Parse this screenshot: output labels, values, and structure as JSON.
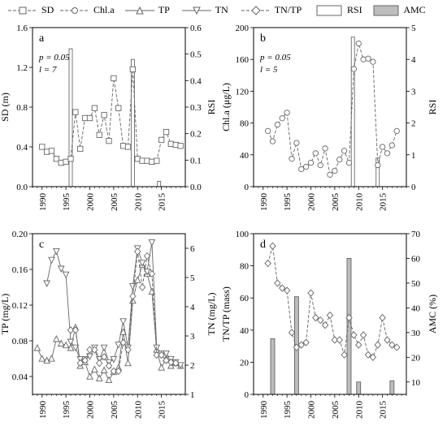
{
  "legend": [
    {
      "label": "SD",
      "marker": "square",
      "line": "dashed"
    },
    {
      "label": "Chl.a",
      "marker": "circle",
      "line": "dashed"
    },
    {
      "label": "TP",
      "marker": "triangle-up",
      "line": "solid"
    },
    {
      "label": "TN",
      "marker": "triangle-down",
      "line": "solid"
    },
    {
      "label": "TN/TP",
      "marker": "diamond",
      "line": "dashed"
    },
    {
      "label": "RSI",
      "marker": "open-bar"
    },
    {
      "label": "AMC",
      "marker": "gray-bar"
    }
  ],
  "colors": {
    "line": "#666666",
    "marker_stroke": "#666666",
    "amc_fill": "#bdbdbd",
    "rsi_fill": "#ffffff"
  },
  "chart_data": [
    {
      "panel": "a",
      "type": "line",
      "ylabel": "SD (m)",
      "y2label": "RSI",
      "xlim": [
        1988,
        2020
      ],
      "xticks": [
        1990,
        1995,
        2000,
        2005,
        2010,
        2015
      ],
      "ylim": [
        0,
        1.6
      ],
      "yticks": [
        0.0,
        0.4,
        0.8,
        1.2,
        1.6
      ],
      "y2lim": [
        0,
        0.6
      ],
      "y2ticks": [
        0.0,
        0.1,
        0.2,
        0.3,
        0.4,
        0.5,
        0.6
      ],
      "annotations": [
        "p = 0.05",
        "l = 7"
      ],
      "series": [
        {
          "marker": "square",
          "line": "dashed",
          "axis": "left",
          "x": [
            1990,
            1991,
            1992,
            1993,
            1994,
            1995,
            1996,
            1997,
            1998,
            1999,
            2000,
            2001,
            2002,
            2003,
            2004,
            2005,
            2006,
            2007,
            2008,
            2009,
            2010,
            2011,
            2012,
            2013,
            2014,
            2015,
            2016,
            2017,
            2018,
            2019
          ],
          "y": [
            0.4,
            0.35,
            0.36,
            0.28,
            0.24,
            0.25,
            0.28,
            0.75,
            0.38,
            0.69,
            0.69,
            0.79,
            0.52,
            0.72,
            0.46,
            1.09,
            0.79,
            0.41,
            0.4,
            1.18,
            0.28,
            0.26,
            0.26,
            0.25,
            0.26,
            0.47,
            0.55,
            0.43,
            0.42,
            0.41
          ]
        }
      ],
      "bars": [
        {
          "kind": "RSI",
          "axis": "right",
          "x": 1996.0,
          "value": 0.52
        },
        {
          "kind": "RSI",
          "axis": "right",
          "x": 2009.0,
          "value": 0.48
        },
        {
          "kind": "RSI",
          "axis": "right",
          "x": 2014.5,
          "value": 0.02
        }
      ]
    },
    {
      "panel": "b",
      "type": "line",
      "ylabel": "Chl.a (μg/L)",
      "y2label": "RSI",
      "xlim": [
        1988,
        2020
      ],
      "xticks": [
        1990,
        1995,
        2000,
        2005,
        2010,
        2015
      ],
      "ylim": [
        0,
        200
      ],
      "yticks": [
        0,
        40,
        80,
        120,
        160,
        200
      ],
      "y2lim": [
        0,
        5
      ],
      "y2ticks": [
        0,
        1,
        2,
        3,
        4,
        5
      ],
      "annotations": [
        "p = 0.05",
        "l = 5"
      ],
      "series": [
        {
          "marker": "circle",
          "line": "dashed",
          "axis": "left",
          "x": [
            1991,
            1992,
            1993,
            1994,
            1995,
            1996,
            1997,
            1998,
            1999,
            2000,
            2001,
            2002,
            2003,
            2004,
            2005,
            2006,
            2007,
            2008,
            2009,
            2010,
            2011,
            2012,
            2013,
            2014,
            2015,
            2016,
            2017,
            2018
          ],
          "y": [
            70,
            57,
            78,
            86,
            93,
            35,
            55,
            22,
            25,
            30,
            42,
            27,
            48,
            15,
            20,
            34,
            45,
            30,
            148,
            180,
            160,
            161,
            157,
            27,
            50,
            42,
            52,
            70
          ]
        }
      ],
      "bars": [
        {
          "kind": "RSI",
          "axis": "right",
          "x": 2008.8,
          "value": 4.7
        },
        {
          "kind": "RSI",
          "axis": "right",
          "x": 2014.0,
          "value": 0.9
        }
      ]
    },
    {
      "panel": "c",
      "type": "line",
      "ylabel": "TP (mg/L)",
      "y2label": "TN (mg/L)",
      "xlim": [
        1988,
        2020
      ],
      "xticks": [
        1990,
        1995,
        2000,
        2005,
        2010,
        2015
      ],
      "ylim": [
        0.02,
        0.2
      ],
      "yticks": [
        0.04,
        0.08,
        0.12,
        0.16,
        0.2
      ],
      "yticklabels": [
        "0.04",
        "0.08",
        "0.12",
        "0.16",
        "0.20"
      ],
      "y2lim": [
        1,
        6.5
      ],
      "y2ticks": [
        1,
        2,
        3,
        4,
        5,
        6
      ],
      "series": [
        {
          "name_key": "TP",
          "marker": "triangle-up",
          "line": "solid",
          "axis": "left",
          "x": [
            1989,
            1990,
            1991,
            1992,
            1993,
            1994,
            1995,
            1996,
            1997,
            1998,
            1999,
            2000,
            2001,
            2002,
            2003,
            2004,
            2005,
            2006,
            2007,
            2008,
            2009,
            2010,
            2011,
            2012,
            2013,
            2014,
            2015,
            2016,
            2017,
            2018,
            2019
          ],
          "y": [
            0.072,
            0.06,
            0.058,
            0.06,
            0.082,
            0.077,
            0.075,
            0.072,
            0.095,
            0.052,
            0.056,
            0.04,
            0.048,
            0.038,
            0.047,
            0.036,
            0.045,
            0.05,
            0.09,
            0.055,
            0.125,
            0.148,
            0.165,
            0.155,
            0.135,
            0.07,
            0.05,
            0.06,
            0.052,
            0.055,
            0.052
          ]
        },
        {
          "name_key": "TN",
          "marker": "triangle-down",
          "line": "solid",
          "axis": "right",
          "x": [
            1991,
            1992,
            1993,
            1994,
            1995,
            1996,
            1997,
            1998,
            1999,
            2000,
            2001,
            2002,
            2003,
            2004,
            2005,
            2006,
            2007,
            2008,
            2009,
            2010,
            2011,
            2012,
            2013,
            2014,
            2015,
            2016,
            2017,
            2018,
            2019
          ],
          "y": [
            4.8,
            5.6,
            5.9,
            5.3,
            5.1,
            2.8,
            2.6,
            2.2,
            2.2,
            2.3,
            2.6,
            2.2,
            2.6,
            2.1,
            2.2,
            2.7,
            3.5,
            2.6,
            4.7,
            6.0,
            5.5,
            5.2,
            6.2,
            2.6,
            2.4,
            2.4,
            2.2,
            2.1,
            2.0
          ]
        },
        {
          "name_key": "TN/TP",
          "marker": "diamond",
          "line": "dashed",
          "axis": "left",
          "x": [
            1996,
            1997,
            1998,
            1999,
            2000,
            2001,
            2002,
            2003,
            2004,
            2005,
            2006,
            2007,
            2008,
            2009,
            2010,
            2011,
            2012,
            2013,
            2014,
            2015,
            2016,
            2017,
            2018
          ],
          "y": [
            0.092,
            0.092,
            0.055,
            0.058,
            0.07,
            0.07,
            0.055,
            0.062,
            0.052,
            0.046,
            0.046,
            0.078,
            0.07,
            0.13,
            0.18,
            0.14,
            0.175,
            0.155,
            0.064,
            0.064,
            0.058,
            0.056,
            0.055
          ]
        }
      ]
    },
    {
      "panel": "d",
      "type": "line",
      "ylabel": "TN/TP (mass)",
      "y2label": "AMC (%)",
      "xlim": [
        1988,
        2020
      ],
      "xticks": [
        1990,
        1995,
        2000,
        2005,
        2010,
        2015
      ],
      "ylim": [
        0,
        100
      ],
      "yticks": [
        0,
        20,
        40,
        60,
        80,
        100
      ],
      "y2lim": [
        5,
        70
      ],
      "y2ticks": [
        10,
        20,
        30,
        40,
        50,
        60,
        70
      ],
      "series": [
        {
          "name_key": "TN/TP",
          "marker": "diamond",
          "line": "dashed",
          "axis": "right",
          "x": [
            1991,
            1992,
            1993,
            1994,
            1995,
            1996,
            1997,
            1998,
            1999,
            2000,
            2001,
            2002,
            2003,
            2004,
            2005,
            2006,
            2007,
            2008,
            2009,
            2010,
            2011,
            2012,
            2013,
            2014,
            2015,
            2016,
            2017,
            2018
          ],
          "y": [
            58,
            65,
            50,
            48,
            47,
            30,
            24,
            25,
            26,
            46,
            36,
            35,
            33,
            37,
            27,
            27,
            21,
            36,
            29,
            25,
            29,
            21,
            20,
            25,
            36,
            27,
            25,
            24
          ]
        }
      ],
      "bars": [
        {
          "kind": "AMC",
          "axis": "right",
          "x": 1992,
          "value": 27.5
        },
        {
          "kind": "AMC",
          "axis": "right",
          "x": 1997,
          "value": 44.5
        },
        {
          "kind": "AMC",
          "axis": "right",
          "x": 2008,
          "value": 60
        },
        {
          "kind": "AMC",
          "axis": "right",
          "x": 2010,
          "value": 10
        },
        {
          "kind": "AMC",
          "axis": "right",
          "x": 2017,
          "value": 10.5
        }
      ]
    }
  ]
}
